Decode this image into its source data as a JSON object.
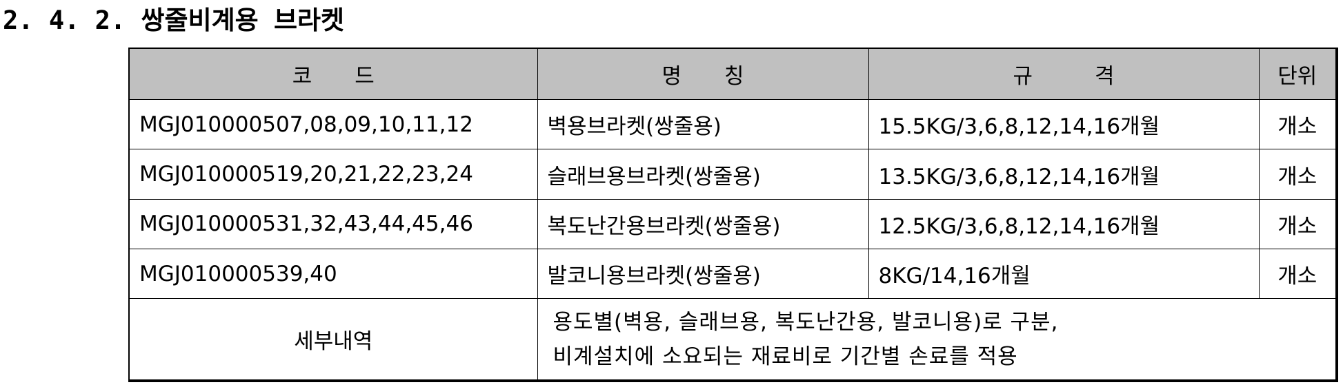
{
  "section": {
    "title": "2. 4. 2. 쌍줄비계용 브라켓"
  },
  "table": {
    "headers": {
      "code": [
        "코",
        "드"
      ],
      "name": [
        "명",
        "칭"
      ],
      "spec": [
        "규",
        "격"
      ],
      "unit": "단위"
    },
    "rows": [
      {
        "code": "MGJ010000507,08,09,10,11,12",
        "name": "벽용브라켓(쌍줄용)",
        "spec": "15.5KG/3,6,8,12,14,16개월",
        "unit": "개소"
      },
      {
        "code": "MGJ010000519,20,21,22,23,24",
        "name": "슬래브용브라켓(쌍줄용)",
        "spec": "13.5KG/3,6,8,12,14,16개월",
        "unit": "개소"
      },
      {
        "code": "MGJ010000531,32,43,44,45,46",
        "name": "복도난간용브라켓(쌍줄용)",
        "spec": "12.5KG/3,6,8,12,14,16개월",
        "unit": "개소"
      },
      {
        "code": "MGJ010000539,40",
        "name": "발코니용브라켓(쌍줄용)",
        "spec": "8KG/14,16개월",
        "unit": "개소"
      }
    ],
    "detail": {
      "label": "세부내역",
      "lines": [
        "용도별(벽용, 슬래브용, 복도난간용, 발코니용)로 구분,",
        "비계설치에 소요되는 재료비로 기간별 손료를 적용"
      ]
    }
  }
}
